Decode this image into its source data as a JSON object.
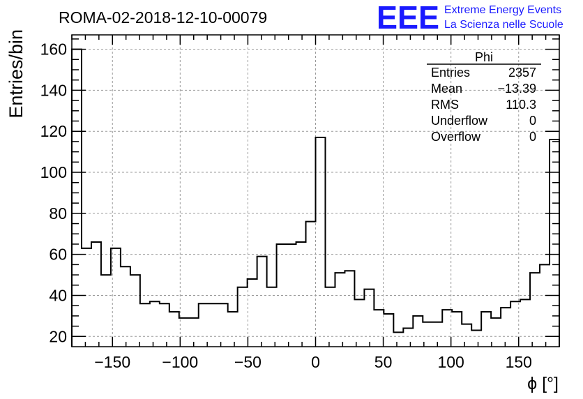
{
  "header": {
    "run_title": "ROMA-02-2018-12-10-00079",
    "logo_text": "EEE",
    "logo_line1": "Extreme Energy Events",
    "logo_line2": "La Scienza nelle Scuole",
    "logo_color": "#1a1aff"
  },
  "stats": {
    "name": "Phi",
    "rows": [
      {
        "label": "Entries",
        "value": "2357"
      },
      {
        "label": "Mean",
        "value": "−13.39"
      },
      {
        "label": "RMS",
        "value": "110.3"
      },
      {
        "label": "Underflow",
        "value": "0"
      },
      {
        "label": "Overflow",
        "value": "0"
      }
    ]
  },
  "chart_data": {
    "type": "histogram",
    "title": "ROMA-02-2018-12-10-00079",
    "xlabel": "ϕ [°]",
    "ylabel": "Entries/bin",
    "xlim": [
      -180,
      180
    ],
    "ylim": [
      15,
      167
    ],
    "grid": true,
    "bin_width": 7.2,
    "bin_low_edge": -180,
    "values": [
      160,
      63,
      66,
      50,
      63,
      54,
      50,
      36,
      37,
      36,
      32,
      29,
      29,
      36,
      36,
      36,
      32,
      44,
      48,
      59,
      44,
      65,
      65,
      66,
      76,
      117,
      44,
      51,
      52,
      38,
      43,
      33,
      31,
      22,
      24,
      30,
      27,
      27,
      33,
      32,
      26,
      23,
      32,
      29,
      34,
      37,
      38,
      51,
      55,
      116
    ],
    "xticks": [
      -150,
      -100,
      -50,
      0,
      50,
      100,
      150
    ],
    "xtick_labels": [
      "−150",
      "−100",
      "−50",
      "0",
      "50",
      "100",
      "150"
    ],
    "yticks": [
      20,
      40,
      60,
      80,
      100,
      120,
      140,
      160
    ],
    "ytick_labels": [
      "20",
      "40",
      "60",
      "80",
      "100",
      "120",
      "140",
      "160"
    ]
  }
}
